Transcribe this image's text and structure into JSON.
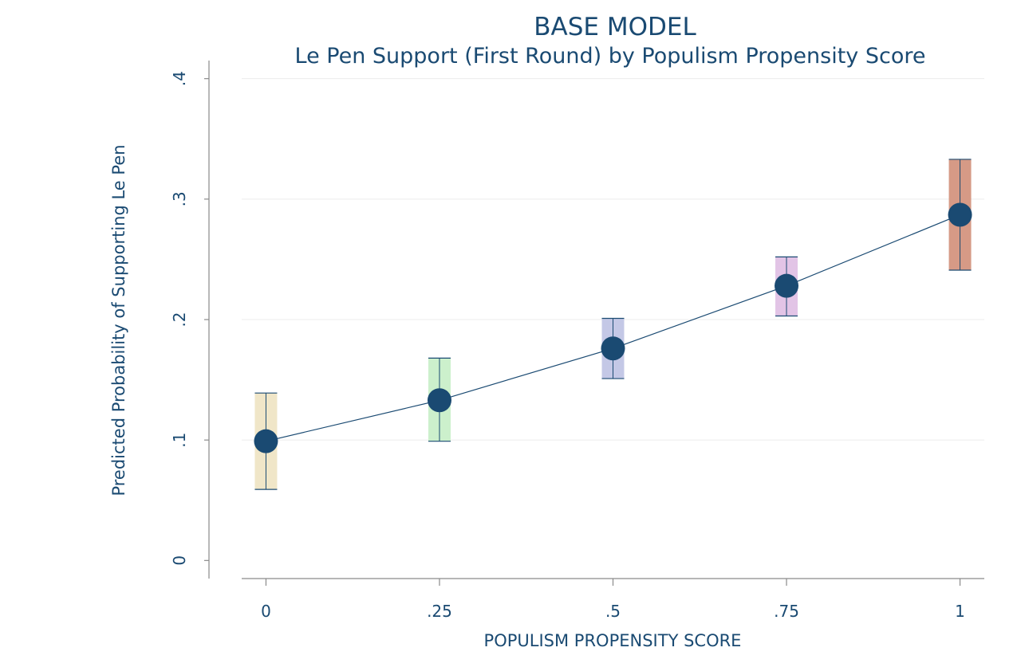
{
  "chart_data": {
    "type": "scatter",
    "title": "BASE MODEL",
    "subtitle": "Le Pen Support (First Round) by Populism Propensity Score",
    "xlabel": "POPULISM PROPENSITY SCORE",
    "ylabel": "Predicted Probability of Supporting Le Pen",
    "xlim": [
      -0.035,
      1.035
    ],
    "ylim": [
      -0.015,
      0.415
    ],
    "x_ticks": [
      0,
      0.25,
      0.5,
      0.75,
      1
    ],
    "x_tick_labels": [
      "0",
      ".25",
      ".5",
      ".75",
      "1"
    ],
    "y_ticks": [
      0,
      0.1,
      0.2,
      0.3,
      0.4
    ],
    "y_tick_labels": [
      "0",
      ".1",
      ".2",
      ".3",
      ".4"
    ],
    "grid": "horizontal",
    "points": [
      {
        "x": 0,
        "y": 0.099,
        "ci_low": 0.059,
        "ci_high": 0.139,
        "color": "#f0e6c8"
      },
      {
        "x": 0.25,
        "y": 0.133,
        "ci_low": 0.099,
        "ci_high": 0.168,
        "color": "#ccf0cc"
      },
      {
        "x": 0.5,
        "y": 0.176,
        "ci_low": 0.151,
        "ci_high": 0.201,
        "color": "#c4c8e6"
      },
      {
        "x": 0.75,
        "y": 0.228,
        "ci_low": 0.203,
        "ci_high": 0.252,
        "color": "#e2c4e6"
      },
      {
        "x": 1,
        "y": 0.287,
        "ci_low": 0.241,
        "ci_high": 0.333,
        "color": "#d69a86"
      }
    ],
    "colors": {
      "marker": "#1a4a72",
      "line": "#1a4a72",
      "text": "#1a4a72",
      "axis": "#8a8a8a",
      "grid": "#ececec"
    }
  }
}
